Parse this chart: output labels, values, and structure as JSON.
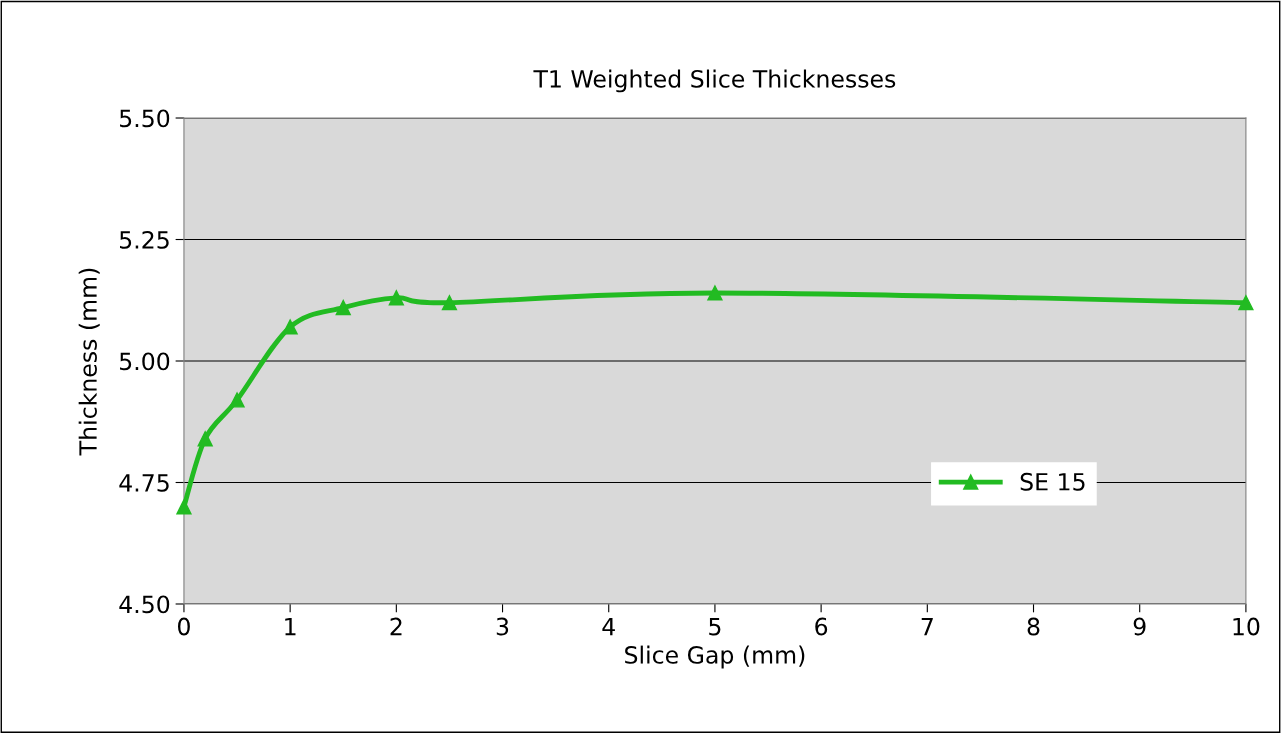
{
  "chart_data": {
    "type": "line",
    "title": "T1 Weighted Slice Thicknesses",
    "xlabel": "Slice Gap (mm)",
    "ylabel": "Thickness (mm)",
    "x": [
      0,
      0.2,
      0.5,
      1,
      1.5,
      2,
      2.5,
      5,
      10
    ],
    "series": [
      {
        "name": "SE 15",
        "color": "#22bb22",
        "values": [
          4.7,
          4.84,
          4.92,
          5.07,
          5.11,
          5.13,
          5.12,
          5.14,
          5.12
        ]
      }
    ],
    "xlim": [
      0,
      10
    ],
    "xticks": [
      0,
      1,
      2,
      3,
      4,
      5,
      6,
      7,
      8,
      9,
      10
    ],
    "ylim": [
      4.5,
      5.5
    ],
    "yticks": [
      {
        "value": 4.5,
        "label": "4.50"
      },
      {
        "value": 4.75,
        "label": "4.75"
      },
      {
        "value": 5.0,
        "label": "5.00"
      },
      {
        "value": 5.25,
        "label": "5.25"
      },
      {
        "value": 5.5,
        "label": "5.50"
      }
    ],
    "grid": "y",
    "legend": "lower right",
    "marker": "triangle",
    "line_style": "solid"
  }
}
